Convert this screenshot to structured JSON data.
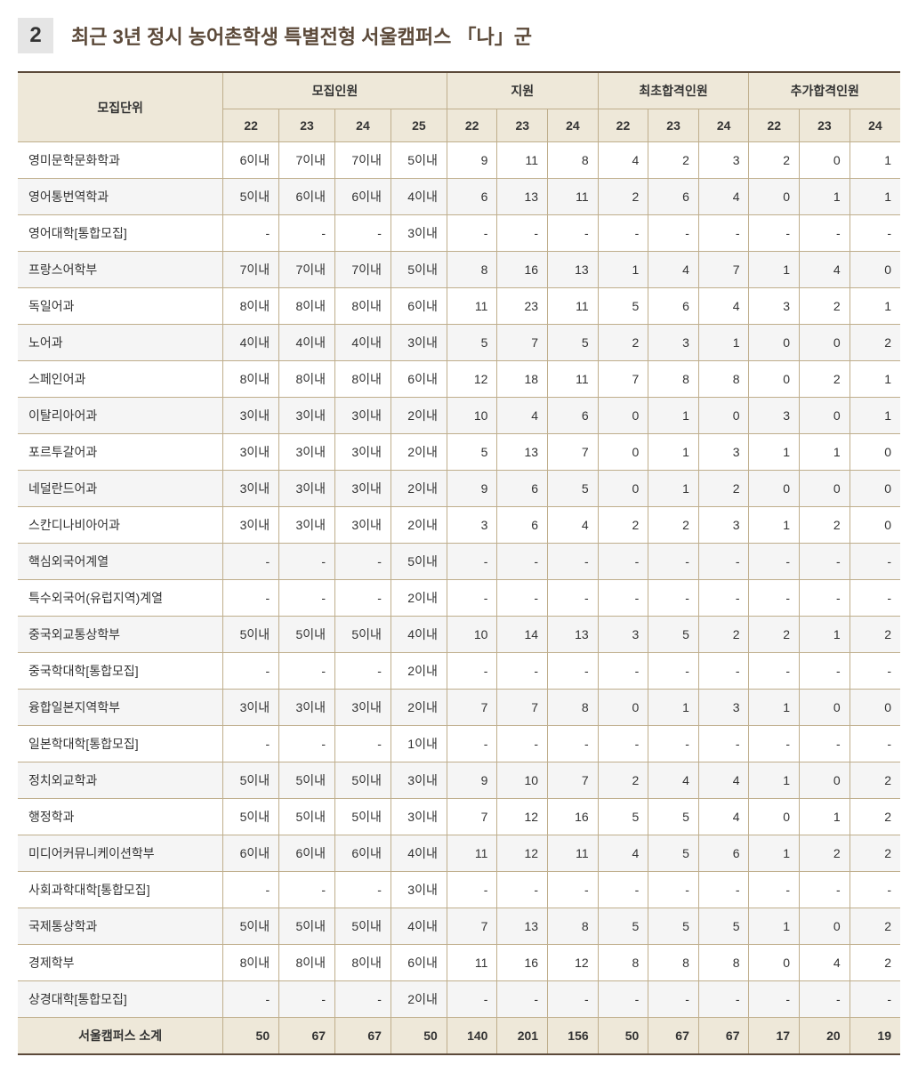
{
  "section": {
    "number": "2",
    "title": "최근 3년 정시 농어촌학생 특별전형 서울캠퍼스 「나」군"
  },
  "table": {
    "headers": {
      "unit": "모집단위",
      "group_capacity": "모집인원",
      "group_apply": "지원",
      "group_initial": "최초합격인원",
      "group_additional": "추가합격인원",
      "years_cap": [
        "22",
        "23",
        "24",
        "25"
      ],
      "years_3": [
        "22",
        "23",
        "24"
      ]
    },
    "rows": [
      {
        "unit": "영미문학문화학과",
        "cap": [
          "6이내",
          "7이내",
          "7이내",
          "5이내"
        ],
        "apply": [
          "9",
          "11",
          "8"
        ],
        "init": [
          "4",
          "2",
          "3"
        ],
        "add": [
          "2",
          "0",
          "1"
        ]
      },
      {
        "unit": "영어통번역학과",
        "cap": [
          "5이내",
          "6이내",
          "6이내",
          "4이내"
        ],
        "apply": [
          "6",
          "13",
          "11"
        ],
        "init": [
          "2",
          "6",
          "4"
        ],
        "add": [
          "0",
          "1",
          "1"
        ]
      },
      {
        "unit": "영어대학[통합모집]",
        "cap": [
          "-",
          "-",
          "-",
          "3이내"
        ],
        "apply": [
          "-",
          "-",
          "-"
        ],
        "init": [
          "-",
          "-",
          "-"
        ],
        "add": [
          "-",
          "-",
          "-"
        ]
      },
      {
        "unit": "프랑스어학부",
        "cap": [
          "7이내",
          "7이내",
          "7이내",
          "5이내"
        ],
        "apply": [
          "8",
          "16",
          "13"
        ],
        "init": [
          "1",
          "4",
          "7"
        ],
        "add": [
          "1",
          "4",
          "0"
        ]
      },
      {
        "unit": "독일어과",
        "cap": [
          "8이내",
          "8이내",
          "8이내",
          "6이내"
        ],
        "apply": [
          "11",
          "23",
          "11"
        ],
        "init": [
          "5",
          "6",
          "4"
        ],
        "add": [
          "3",
          "2",
          "1"
        ]
      },
      {
        "unit": "노어과",
        "cap": [
          "4이내",
          "4이내",
          "4이내",
          "3이내"
        ],
        "apply": [
          "5",
          "7",
          "5"
        ],
        "init": [
          "2",
          "3",
          "1"
        ],
        "add": [
          "0",
          "0",
          "2"
        ]
      },
      {
        "unit": "스페인어과",
        "cap": [
          "8이내",
          "8이내",
          "8이내",
          "6이내"
        ],
        "apply": [
          "12",
          "18",
          "11"
        ],
        "init": [
          "7",
          "8",
          "8"
        ],
        "add": [
          "0",
          "2",
          "1"
        ]
      },
      {
        "unit": "이탈리아어과",
        "cap": [
          "3이내",
          "3이내",
          "3이내",
          "2이내"
        ],
        "apply": [
          "10",
          "4",
          "6"
        ],
        "init": [
          "0",
          "1",
          "0"
        ],
        "add": [
          "3",
          "0",
          "1"
        ]
      },
      {
        "unit": "포르투갈어과",
        "cap": [
          "3이내",
          "3이내",
          "3이내",
          "2이내"
        ],
        "apply": [
          "5",
          "13",
          "7"
        ],
        "init": [
          "0",
          "1",
          "3"
        ],
        "add": [
          "1",
          "1",
          "0"
        ]
      },
      {
        "unit": "네덜란드어과",
        "cap": [
          "3이내",
          "3이내",
          "3이내",
          "2이내"
        ],
        "apply": [
          "9",
          "6",
          "5"
        ],
        "init": [
          "0",
          "1",
          "2"
        ],
        "add": [
          "0",
          "0",
          "0"
        ]
      },
      {
        "unit": "스칸디나비아어과",
        "cap": [
          "3이내",
          "3이내",
          "3이내",
          "2이내"
        ],
        "apply": [
          "3",
          "6",
          "4"
        ],
        "init": [
          "2",
          "2",
          "3"
        ],
        "add": [
          "1",
          "2",
          "0"
        ]
      },
      {
        "unit": "핵심외국어계열",
        "cap": [
          "-",
          "-",
          "-",
          "5이내"
        ],
        "apply": [
          "-",
          "-",
          "-"
        ],
        "init": [
          "-",
          "-",
          "-"
        ],
        "add": [
          "-",
          "-",
          "-"
        ]
      },
      {
        "unit": "특수외국어(유럽지역)계열",
        "cap": [
          "-",
          "-",
          "-",
          "2이내"
        ],
        "apply": [
          "-",
          "-",
          "-"
        ],
        "init": [
          "-",
          "-",
          "-"
        ],
        "add": [
          "-",
          "-",
          "-"
        ]
      },
      {
        "unit": "중국외교통상학부",
        "cap": [
          "5이내",
          "5이내",
          "5이내",
          "4이내"
        ],
        "apply": [
          "10",
          "14",
          "13"
        ],
        "init": [
          "3",
          "5",
          "2"
        ],
        "add": [
          "2",
          "1",
          "2"
        ]
      },
      {
        "unit": "중국학대학[통합모집]",
        "cap": [
          "-",
          "-",
          "-",
          "2이내"
        ],
        "apply": [
          "-",
          "-",
          "-"
        ],
        "init": [
          "-",
          "-",
          "-"
        ],
        "add": [
          "-",
          "-",
          "-"
        ]
      },
      {
        "unit": "융합일본지역학부",
        "cap": [
          "3이내",
          "3이내",
          "3이내",
          "2이내"
        ],
        "apply": [
          "7",
          "7",
          "8"
        ],
        "init": [
          "0",
          "1",
          "3"
        ],
        "add": [
          "1",
          "0",
          "0"
        ]
      },
      {
        "unit": "일본학대학[통합모집]",
        "cap": [
          "-",
          "-",
          "-",
          "1이내"
        ],
        "apply": [
          "-",
          "-",
          "-"
        ],
        "init": [
          "-",
          "-",
          "-"
        ],
        "add": [
          "-",
          "-",
          "-"
        ]
      },
      {
        "unit": "정치외교학과",
        "cap": [
          "5이내",
          "5이내",
          "5이내",
          "3이내"
        ],
        "apply": [
          "9",
          "10",
          "7"
        ],
        "init": [
          "2",
          "4",
          "4"
        ],
        "add": [
          "1",
          "0",
          "2"
        ]
      },
      {
        "unit": "행정학과",
        "cap": [
          "5이내",
          "5이내",
          "5이내",
          "3이내"
        ],
        "apply": [
          "7",
          "12",
          "16"
        ],
        "init": [
          "5",
          "5",
          "4"
        ],
        "add": [
          "0",
          "1",
          "2"
        ]
      },
      {
        "unit": "미디어커뮤니케이션학부",
        "cap": [
          "6이내",
          "6이내",
          "6이내",
          "4이내"
        ],
        "apply": [
          "11",
          "12",
          "11"
        ],
        "init": [
          "4",
          "5",
          "6"
        ],
        "add": [
          "1",
          "2",
          "2"
        ]
      },
      {
        "unit": "사회과학대학[통합모집]",
        "cap": [
          "-",
          "-",
          "-",
          "3이내"
        ],
        "apply": [
          "-",
          "-",
          "-"
        ],
        "init": [
          "-",
          "-",
          "-"
        ],
        "add": [
          "-",
          "-",
          "-"
        ]
      },
      {
        "unit": "국제통상학과",
        "cap": [
          "5이내",
          "5이내",
          "5이내",
          "4이내"
        ],
        "apply": [
          "7",
          "13",
          "8"
        ],
        "init": [
          "5",
          "5",
          "5"
        ],
        "add": [
          "1",
          "0",
          "2"
        ]
      },
      {
        "unit": "경제학부",
        "cap": [
          "8이내",
          "8이내",
          "8이내",
          "6이내"
        ],
        "apply": [
          "11",
          "16",
          "12"
        ],
        "init": [
          "8",
          "8",
          "8"
        ],
        "add": [
          "0",
          "4",
          "2"
        ]
      },
      {
        "unit": "상경대학[통합모집]",
        "cap": [
          "-",
          "-",
          "-",
          "2이내"
        ],
        "apply": [
          "-",
          "-",
          "-"
        ],
        "init": [
          "-",
          "-",
          "-"
        ],
        "add": [
          "-",
          "-",
          "-"
        ]
      }
    ],
    "footer": {
      "label": "서울캠퍼스 소계",
      "cap": [
        "50",
        "67",
        "67",
        "50"
      ],
      "apply": [
        "140",
        "201",
        "156"
      ],
      "init": [
        "50",
        "67",
        "67"
      ],
      "add": [
        "17",
        "20",
        "19"
      ]
    }
  }
}
